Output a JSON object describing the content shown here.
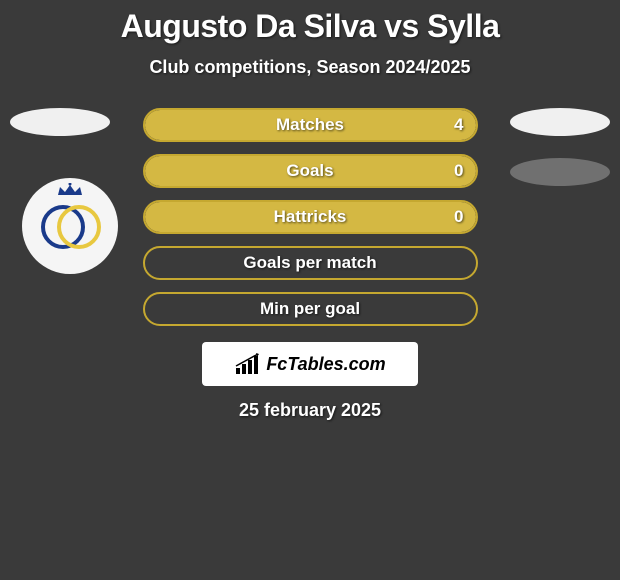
{
  "title": "Augusto Da Silva vs Sylla",
  "subtitle": "Club competitions, Season 2024/2025",
  "date": "25 february 2025",
  "logo_text": "FcTables.com",
  "colors": {
    "primary_fill": "#d4b843",
    "primary_border": "#c5a830",
    "ellipse_light": "#f0f0f0",
    "ellipse_dark": "#707070",
    "badge_blue": "#1a3a8a",
    "badge_yellow": "#e8c840"
  },
  "stats": [
    {
      "label": "Matches",
      "value_left": "",
      "value_right": "4",
      "fill_pct": 100
    },
    {
      "label": "Goals",
      "value_left": "",
      "value_right": "0",
      "fill_pct": 100
    },
    {
      "label": "Hattricks",
      "value_left": "",
      "value_right": "0",
      "fill_pct": 100
    },
    {
      "label": "Goals per match",
      "value_left": "",
      "value_right": "",
      "fill_pct": 0
    },
    {
      "label": "Min per goal",
      "value_left": "",
      "value_right": "",
      "fill_pct": 0
    }
  ]
}
